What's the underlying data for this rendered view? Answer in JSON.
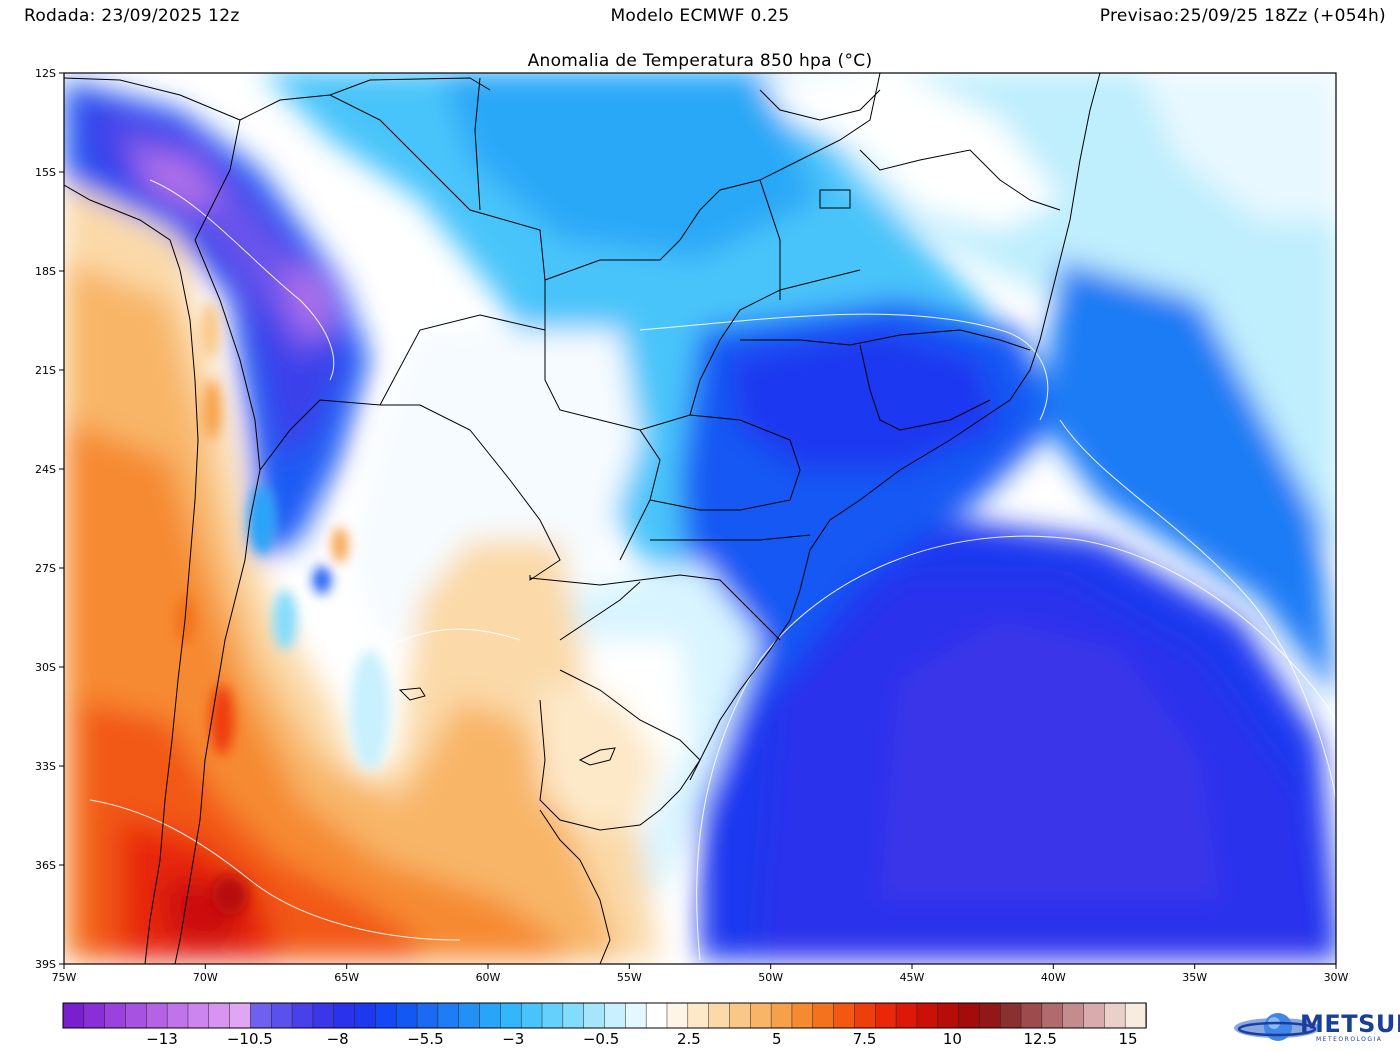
{
  "header": {
    "run": "Rodada: 23/09/2025 12z",
    "model": "Modelo ECMWF 0.25",
    "forecast": "Previsao:25/09/25 18Zz (+054h)"
  },
  "map": {
    "title": "Anomalia de Temperatura 850 hpa (°C)",
    "lat_ticks": [
      "12S",
      "15S",
      "18S",
      "21S",
      "24S",
      "27S",
      "30S",
      "33S",
      "36S",
      "39S"
    ],
    "lon_ticks": [
      "75W",
      "70W",
      "65W",
      "60W",
      "55W",
      "50W",
      "45W",
      "40W",
      "35W",
      "30W"
    ],
    "extent": {
      "lon_min": -75,
      "lon_max": -30,
      "lat_min": -39,
      "lat_max": -12
    }
  },
  "colorbar": {
    "labels": [
      "-13",
      "-10.5",
      "-8",
      "-5.5",
      "-3",
      "-0.5",
      "2.5",
      "5",
      "7.5",
      "10",
      "12.5",
      "15"
    ],
    "colors": [
      "#7a1fd0",
      "#8a2fd8",
      "#9a41de",
      "#a852e2",
      "#b562e6",
      "#c174ea",
      "#cc85ee",
      "#d795f1",
      "#e0a6f4",
      "#7060ee",
      "#5a50ec",
      "#4a40ea",
      "#3a36ea",
      "#2a32ec",
      "#1e38f0",
      "#1448f4",
      "#1458f4",
      "#1a6af4",
      "#1e7cf5",
      "#2490f6",
      "#28a4f8",
      "#34b6fa",
      "#48c4fa",
      "#64d0fb",
      "#84dcfc",
      "#a6e6fd",
      "#c8f0fe",
      "#e6f8ff",
      "#ffffff",
      "#fff5e6",
      "#fde8c8",
      "#fbd9a8",
      "#f9c888",
      "#f8b568",
      "#f7a04a",
      "#f68a30",
      "#f4721e",
      "#f25812",
      "#ee3e0c",
      "#e82808",
      "#de1808",
      "#cc1008",
      "#b80c08",
      "#a40c0c",
      "#921818",
      "#8a3030",
      "#9c4c4c",
      "#b06c6c",
      "#c48c8c",
      "#d8acac",
      "#ead0c8",
      "#f8ece0"
    ],
    "colors_note": "palette"
  },
  "logo": {
    "name": "METSUL",
    "sub": "METEOROLOGIA",
    "icon": "planet-ring-icon"
  }
}
